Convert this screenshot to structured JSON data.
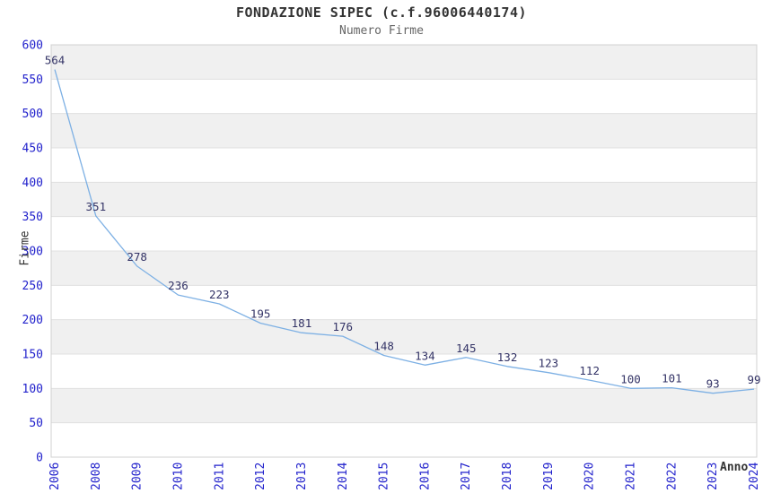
{
  "chart_data": {
    "type": "line",
    "title": "FONDAZIONE SIPEC (c.f.96006440174)",
    "subtitle": "Numero Firme",
    "xlabel": "Anno",
    "ylabel": "Firme",
    "categories": [
      "2006",
      "2008",
      "2009",
      "2010",
      "2011",
      "2012",
      "2013",
      "2014",
      "2015",
      "2016",
      "2017",
      "2018",
      "2019",
      "2020",
      "2021",
      "2022",
      "2023",
      "2024"
    ],
    "values": [
      564,
      351,
      278,
      236,
      223,
      195,
      181,
      176,
      148,
      134,
      145,
      132,
      123,
      112,
      100,
      101,
      93,
      99
    ],
    "ylim": [
      0,
      600
    ],
    "ytick_step": 50,
    "grid": "horizontal",
    "legend": "none",
    "colors": {
      "line": "#7db0e4",
      "band_fill": "#f0f0f0",
      "gridline": "#e0e0e0",
      "plot_border": "#d0d0d0",
      "tick_label": "#2222cc",
      "data_label": "#333366",
      "title": "#333333",
      "subtitle": "#666666",
      "axis_title": "#333333",
      "background": "#ffffff"
    }
  }
}
